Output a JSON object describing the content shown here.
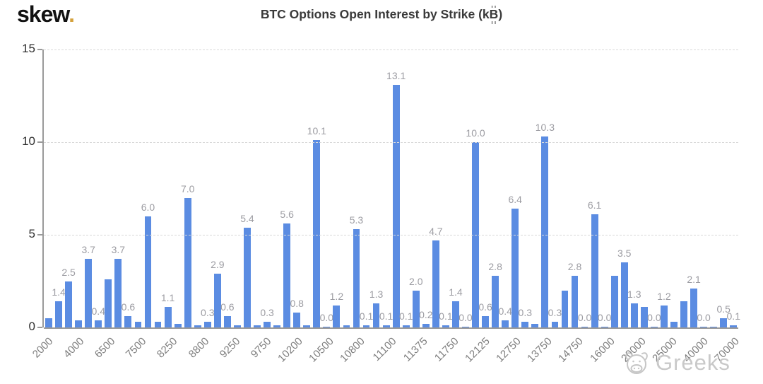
{
  "header": {
    "logo_text": "skew",
    "logo_dot": ".",
    "title_pre": "BTC Options Open Interest by Strike (k",
    "title_btc": "B",
    "title_post": ")"
  },
  "title_full": "BTC Options Open Interest by Strike (k₿)",
  "watermark": {
    "icon": "cow-icon",
    "text": "Greeks"
  },
  "colors": {
    "bar": "#5b8ce2",
    "bar_label": "#9c9ca2",
    "grid": "#d9d9d9",
    "axis": "#9a9a9a",
    "ytick": "#2f2f2f",
    "xtick": "#7d7d7d",
    "title": "#3a3a3a",
    "logo": "#111111",
    "logo_dot": "#d4a13c",
    "watermark": "#c9c9c9"
  },
  "chart_data": {
    "type": "bar",
    "title": "BTC Options Open Interest by Strike (k₿)",
    "xlabel": "",
    "ylabel": "",
    "ylim": [
      0,
      15
    ],
    "yticks": [
      0,
      5,
      10,
      15
    ],
    "grid": "horizontal-dashed",
    "legend": "none",
    "x_tick_labels": [
      "2000",
      "4000",
      "6500",
      "7500",
      "8250",
      "8800",
      "9250",
      "9750",
      "10200",
      "10500",
      "10800",
      "11100",
      "11375",
      "11750",
      "12125",
      "12750",
      "13750",
      "14750",
      "16000",
      "20000",
      "25000",
      "40000",
      "70000"
    ],
    "bars": [
      {
        "value": 0.5,
        "label": ""
      },
      {
        "value": 1.4,
        "label": "1.4"
      },
      {
        "value": 2.5,
        "label": "2.5"
      },
      {
        "value": 0.4,
        "label": ""
      },
      {
        "value": 3.7,
        "label": "3.7"
      },
      {
        "value": 0.4,
        "label": "0.4"
      },
      {
        "value": 2.6,
        "label": ""
      },
      {
        "value": 3.7,
        "label": "3.7"
      },
      {
        "value": 0.6,
        "label": "0.6"
      },
      {
        "value": 0.3,
        "label": ""
      },
      {
        "value": 6.0,
        "label": "6.0"
      },
      {
        "value": 0.3,
        "label": ""
      },
      {
        "value": 1.1,
        "label": "1.1"
      },
      {
        "value": 0.2,
        "label": ""
      },
      {
        "value": 7.0,
        "label": "7.0"
      },
      {
        "value": 0.1,
        "label": ""
      },
      {
        "value": 0.3,
        "label": "0.3"
      },
      {
        "value": 2.9,
        "label": "2.9"
      },
      {
        "value": 0.6,
        "label": "0.6"
      },
      {
        "value": 0.1,
        "label": ""
      },
      {
        "value": 5.4,
        "label": "5.4"
      },
      {
        "value": 0.1,
        "label": ""
      },
      {
        "value": 0.3,
        "label": "0.3"
      },
      {
        "value": 0.1,
        "label": ""
      },
      {
        "value": 5.6,
        "label": "5.6"
      },
      {
        "value": 0.8,
        "label": "0.8"
      },
      {
        "value": 0.1,
        "label": ""
      },
      {
        "value": 10.1,
        "label": "10.1"
      },
      {
        "value": 0.0,
        "label": "0.0"
      },
      {
        "value": 1.2,
        "label": "1.2"
      },
      {
        "value": 0.1,
        "label": ""
      },
      {
        "value": 5.3,
        "label": "5.3"
      },
      {
        "value": 0.1,
        "label": "0.1"
      },
      {
        "value": 1.3,
        "label": "1.3"
      },
      {
        "value": 0.1,
        "label": "0.1"
      },
      {
        "value": 13.1,
        "label": "13.1"
      },
      {
        "value": 0.1,
        "label": "0.1"
      },
      {
        "value": 2.0,
        "label": "2.0"
      },
      {
        "value": 0.2,
        "label": "0.2"
      },
      {
        "value": 4.7,
        "label": "4.7"
      },
      {
        "value": 0.1,
        "label": "0.1"
      },
      {
        "value": 1.4,
        "label": "1.4"
      },
      {
        "value": 0.0,
        "label": "0.0"
      },
      {
        "value": 10.0,
        "label": "10.0"
      },
      {
        "value": 0.6,
        "label": "0.6"
      },
      {
        "value": 2.8,
        "label": "2.8"
      },
      {
        "value": 0.4,
        "label": "0.4"
      },
      {
        "value": 6.4,
        "label": "6.4"
      },
      {
        "value": 0.3,
        "label": "0.3"
      },
      {
        "value": 0.2,
        "label": ""
      },
      {
        "value": 10.3,
        "label": "10.3"
      },
      {
        "value": 0.3,
        "label": "0.3"
      },
      {
        "value": 2.0,
        "label": ""
      },
      {
        "value": 2.8,
        "label": "2.8"
      },
      {
        "value": 0.0,
        "label": "0.0"
      },
      {
        "value": 6.1,
        "label": "6.1"
      },
      {
        "value": 0.0,
        "label": "0.0"
      },
      {
        "value": 2.8,
        "label": ""
      },
      {
        "value": 3.5,
        "label": "3.5"
      },
      {
        "value": 1.3,
        "label": "1.3"
      },
      {
        "value": 1.1,
        "label": ""
      },
      {
        "value": 0.0,
        "label": "0.0"
      },
      {
        "value": 1.2,
        "label": "1.2"
      },
      {
        "value": 0.3,
        "label": ""
      },
      {
        "value": 1.4,
        "label": ""
      },
      {
        "value": 2.1,
        "label": "2.1"
      },
      {
        "value": 0.0,
        "label": "0.0"
      },
      {
        "value": 0.0,
        "label": ""
      },
      {
        "value": 0.5,
        "label": "0.5"
      },
      {
        "value": 0.1,
        "label": "0.1"
      }
    ]
  }
}
